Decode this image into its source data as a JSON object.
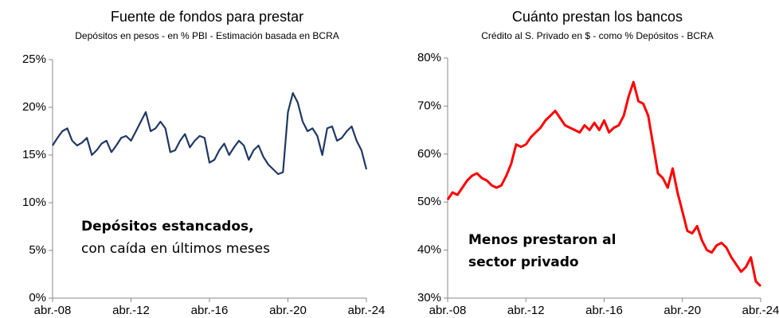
{
  "chart_data": [
    {
      "type": "line",
      "title": "Fuente de fondos para prestar",
      "subtitle": "Depósitos en pesos -  en % PBI - Estimación basada en BCRA",
      "color": "#1f3864",
      "categories": [
        "abr.-08",
        null,
        null,
        null,
        null,
        null,
        null,
        null,
        null,
        null,
        null,
        null,
        null,
        null,
        null,
        null,
        "abr.-12",
        null,
        null,
        null,
        null,
        null,
        null,
        null,
        null,
        null,
        null,
        null,
        null,
        null,
        null,
        null,
        "abr.-16",
        null,
        null,
        null,
        null,
        null,
        null,
        null,
        null,
        null,
        null,
        null,
        null,
        null,
        null,
        null,
        "abr.-20",
        null,
        null,
        null,
        null,
        null,
        null,
        null,
        null,
        null,
        null,
        null,
        null,
        null,
        null,
        null,
        "abr.-24"
      ],
      "values": [
        16.0,
        16.8,
        17.5,
        17.8,
        16.5,
        16.0,
        16.3,
        16.8,
        15.0,
        15.5,
        16.2,
        16.5,
        15.3,
        16.0,
        16.8,
        17.0,
        16.5,
        17.5,
        18.5,
        19.5,
        17.5,
        17.8,
        18.5,
        17.8,
        15.3,
        15.5,
        16.5,
        17.2,
        15.8,
        16.5,
        17.0,
        16.8,
        14.2,
        14.5,
        15.5,
        16.2,
        15.0,
        15.8,
        16.5,
        16.0,
        14.5,
        15.5,
        16.0,
        14.8,
        14.0,
        13.5,
        13.0,
        13.2,
        19.5,
        21.5,
        20.5,
        18.5,
        17.5,
        17.8,
        17.0,
        15.0,
        17.8,
        18.0,
        16.5,
        16.8,
        17.5,
        18.0,
        16.5,
        15.5,
        13.5
      ],
      "ylim": [
        0,
        25
      ],
      "yticks": [
        {
          "value": 0,
          "label": "0%"
        },
        {
          "value": 5,
          "label": "5%"
        },
        {
          "value": 10,
          "label": "10%"
        },
        {
          "value": 15,
          "label": "15%"
        },
        {
          "value": 20,
          "label": "20%"
        },
        {
          "value": 25,
          "label": "25%"
        }
      ],
      "annotations": [
        {
          "text": "Depósitos estancados,",
          "bold": true
        },
        {
          "text": "con caída en últimos meses",
          "bold": false
        }
      ]
    },
    {
      "type": "line",
      "title": "Cuánto prestan los bancos",
      "subtitle": "Crédito al S. Privado en $ - como % Depósitos - BCRA",
      "color": "#ff0000",
      "categories": [
        "abr.-08",
        null,
        null,
        null,
        null,
        null,
        null,
        null,
        null,
        null,
        null,
        null,
        null,
        null,
        null,
        null,
        "abr.-12",
        null,
        null,
        null,
        null,
        null,
        null,
        null,
        null,
        null,
        null,
        null,
        null,
        null,
        null,
        null,
        "abr.-16",
        null,
        null,
        null,
        null,
        null,
        null,
        null,
        null,
        null,
        null,
        null,
        null,
        null,
        null,
        null,
        "abr.-20",
        null,
        null,
        null,
        null,
        null,
        null,
        null,
        null,
        null,
        null,
        null,
        null,
        null,
        null,
        null,
        "abr.-24"
      ],
      "values": [
        50.5,
        52,
        51.5,
        53,
        54.5,
        55.5,
        56,
        55,
        54.5,
        53.5,
        53,
        53.5,
        55.5,
        58,
        62,
        61.5,
        62,
        63.5,
        64.5,
        65.5,
        67,
        68,
        69,
        67.5,
        66,
        65.5,
        65,
        64.5,
        66,
        65,
        66.5,
        65,
        67,
        64.5,
        65.5,
        66,
        68,
        72,
        75,
        71,
        70.5,
        68,
        62,
        56,
        55,
        53,
        57,
        52,
        48,
        44,
        43.5,
        45,
        42,
        40,
        39.5,
        41,
        41.5,
        40.5,
        38.5,
        37,
        35.5,
        36.5,
        38.5,
        33.5,
        32.5
      ],
      "ylim": [
        30,
        80
      ],
      "yticks": [
        {
          "value": 30,
          "label": "30%"
        },
        {
          "value": 40,
          "label": "40%"
        },
        {
          "value": 50,
          "label": "50%"
        },
        {
          "value": 60,
          "label": "60%"
        },
        {
          "value": 70,
          "label": "70%"
        },
        {
          "value": 80,
          "label": "80%"
        }
      ],
      "annotations": [
        {
          "text": "Menos prestaron al",
          "bold": true
        },
        {
          "text": "sector privado",
          "bold": true
        }
      ]
    }
  ]
}
